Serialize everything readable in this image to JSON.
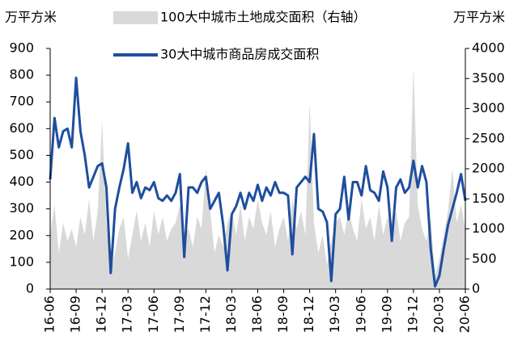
{
  "chart_data": {
    "type": "combo",
    "y_label": "万平方米",
    "y2_label": "万平方米",
    "categories": [
      "16-06",
      null,
      null,
      null,
      null,
      null,
      "16-09",
      null,
      null,
      null,
      null,
      null,
      "16-12",
      null,
      null,
      null,
      null,
      null,
      "17-03",
      null,
      null,
      null,
      null,
      null,
      "17-06",
      null,
      null,
      null,
      null,
      null,
      "17-09",
      null,
      null,
      null,
      null,
      null,
      "17-12",
      null,
      null,
      null,
      null,
      null,
      "18-03",
      null,
      null,
      null,
      null,
      null,
      "18-06",
      null,
      null,
      null,
      null,
      null,
      "18-09",
      null,
      null,
      null,
      null,
      null,
      "18-12",
      null,
      null,
      null,
      null,
      null,
      "19-03",
      null,
      null,
      null,
      null,
      null,
      "19-06",
      null,
      null,
      null,
      null,
      null,
      "19-09",
      null,
      null,
      null,
      null,
      null,
      "19-12",
      null,
      null,
      null,
      null,
      null,
      "20-03",
      null,
      null,
      null,
      null,
      null,
      "20-06"
    ],
    "series": [
      {
        "name": "100大中城市土地成交面积（右轴）",
        "type": "area",
        "axis": "y2",
        "color": "#d9d9d9",
        "values": [
          900,
          1400,
          600,
          1100,
          800,
          1000,
          700,
          1200,
          900,
          1500,
          800,
          1300,
          2800,
          1100,
          300,
          600,
          1000,
          1200,
          500,
          900,
          1300,
          800,
          1100,
          700,
          1300,
          900,
          1200,
          800,
          1000,
          1100,
          1400,
          900,
          1000,
          700,
          1200,
          1000,
          2000,
          1300,
          600,
          900,
          700,
          1100,
          1300,
          900,
          1400,
          800,
          1200,
          1000,
          1500,
          1100,
          900,
          1300,
          700,
          1000,
          1200,
          800,
          1500,
          1000,
          1300,
          900,
          3100,
          1100,
          600,
          900,
          400,
          800,
          1100,
          1200,
          900,
          1300,
          1000,
          800,
          1500,
          1000,
          1200,
          800,
          1400,
          900,
          1200,
          1000,
          1300,
          800,
          1100,
          1200,
          3700,
          1400,
          1000,
          800,
          1200,
          200,
          500,
          900,
          1300,
          2000,
          1100,
          1400,
          1000
        ]
      },
      {
        "name": "30大中城市商品房成交面积",
        "type": "line",
        "axis": "y",
        "color": "#1f4e9e",
        "values": [
          410,
          640,
          530,
          590,
          600,
          530,
          790,
          590,
          500,
          380,
          420,
          460,
          470,
          380,
          60,
          300,
          380,
          450,
          545,
          360,
          400,
          340,
          380,
          370,
          400,
          340,
          330,
          350,
          330,
          360,
          430,
          120,
          380,
          380,
          360,
          400,
          420,
          300,
          330,
          360,
          240,
          70,
          280,
          310,
          360,
          300,
          360,
          330,
          390,
          330,
          380,
          350,
          400,
          360,
          360,
          350,
          130,
          380,
          400,
          420,
          400,
          580,
          300,
          290,
          250,
          30,
          280,
          300,
          420,
          260,
          400,
          400,
          350,
          460,
          370,
          360,
          330,
          440,
          380,
          180,
          380,
          410,
          360,
          380,
          480,
          380,
          460,
          400,
          150,
          10,
          50,
          150,
          240,
          300,
          360,
          430,
          330
        ]
      }
    ],
    "ylim": [
      0,
      900
    ],
    "yticks": [
      0,
      100,
      200,
      300,
      400,
      500,
      600,
      700,
      800,
      900
    ],
    "y2lim": [
      0,
      4000
    ],
    "y2ticks": [
      0,
      500,
      1000,
      1500,
      2000,
      2500,
      3000,
      3500,
      4000
    ],
    "grid": false,
    "legend": "top"
  }
}
